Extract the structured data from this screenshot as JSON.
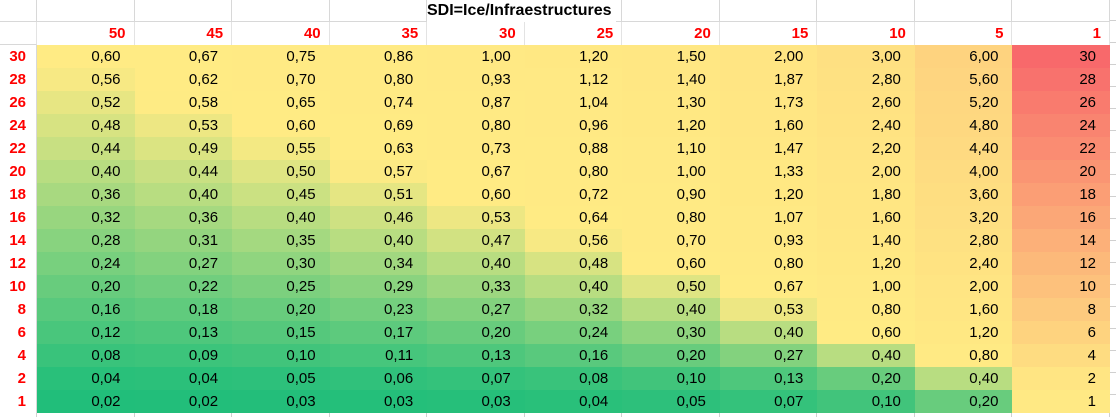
{
  "sheet": {
    "title": "SDI=Ice/Infraestructures",
    "column_headers": [
      "50",
      "45",
      "40",
      "35",
      "30",
      "25",
      "20",
      "15",
      "10",
      "5",
      "1"
    ],
    "row_headers": [
      "30",
      "28",
      "26",
      "24",
      "22",
      "20",
      "18",
      "16",
      "14",
      "12",
      "10",
      "8",
      "6",
      "4",
      "2",
      "1"
    ],
    "cells": [
      [
        "0,60",
        "0,67",
        "0,75",
        "0,86",
        "1,00",
        "1,20",
        "1,50",
        "2,00",
        "3,00",
        "6,00",
        "30"
      ],
      [
        "0,56",
        "0,62",
        "0,70",
        "0,80",
        "0,93",
        "1,12",
        "1,40",
        "1,87",
        "2,80",
        "5,60",
        "28"
      ],
      [
        "0,52",
        "0,58",
        "0,65",
        "0,74",
        "0,87",
        "1,04",
        "1,30",
        "1,73",
        "2,60",
        "5,20",
        "26"
      ],
      [
        "0,48",
        "0,53",
        "0,60",
        "0,69",
        "0,80",
        "0,96",
        "1,20",
        "1,60",
        "2,40",
        "4,80",
        "24"
      ],
      [
        "0,44",
        "0,49",
        "0,55",
        "0,63",
        "0,73",
        "0,88",
        "1,10",
        "1,47",
        "2,20",
        "4,40",
        "22"
      ],
      [
        "0,40",
        "0,44",
        "0,50",
        "0,57",
        "0,67",
        "0,80",
        "1,00",
        "1,33",
        "2,00",
        "4,00",
        "20"
      ],
      [
        "0,36",
        "0,40",
        "0,45",
        "0,51",
        "0,60",
        "0,72",
        "0,90",
        "1,20",
        "1,80",
        "3,60",
        "18"
      ],
      [
        "0,32",
        "0,36",
        "0,40",
        "0,46",
        "0,53",
        "0,64",
        "0,80",
        "1,07",
        "1,60",
        "3,20",
        "16"
      ],
      [
        "0,28",
        "0,31",
        "0,35",
        "0,40",
        "0,47",
        "0,56",
        "0,70",
        "0,93",
        "1,40",
        "2,80",
        "14"
      ],
      [
        "0,24",
        "0,27",
        "0,30",
        "0,34",
        "0,40",
        "0,48",
        "0,60",
        "0,80",
        "1,20",
        "2,40",
        "12"
      ],
      [
        "0,20",
        "0,22",
        "0,25",
        "0,29",
        "0,33",
        "0,40",
        "0,50",
        "0,67",
        "1,00",
        "2,00",
        "10"
      ],
      [
        "0,16",
        "0,18",
        "0,20",
        "0,23",
        "0,27",
        "0,32",
        "0,40",
        "0,53",
        "0,80",
        "1,60",
        "8"
      ],
      [
        "0,12",
        "0,13",
        "0,15",
        "0,17",
        "0,20",
        "0,24",
        "0,30",
        "0,40",
        "0,60",
        "1,20",
        "6"
      ],
      [
        "0,08",
        "0,09",
        "0,10",
        "0,11",
        "0,13",
        "0,16",
        "0,20",
        "0,27",
        "0,40",
        "0,80",
        "4"
      ],
      [
        "0,04",
        "0,04",
        "0,05",
        "0,06",
        "0,07",
        "0,08",
        "0,10",
        "0,13",
        "0,20",
        "0,40",
        "2"
      ],
      [
        "0,02",
        "0,02",
        "0,03",
        "0,03",
        "0,03",
        "0,04",
        "0,05",
        "0,07",
        "0,10",
        "0,20",
        "1"
      ]
    ]
  },
  "colors": {
    "header_text": "#FF0000",
    "row_label_text": "#FF0000",
    "value_text": "#000000",
    "gridline": "#D8D8D8",
    "background": "#FFFFFF",
    "scale_min_color": "#21BE7A",
    "scale_mid_color": "#FFEB84",
    "scale_max_color": "#F8696B",
    "scale_min_value": 0.02,
    "scale_mid_value": 0.58,
    "scale_max_value": 30
  },
  "chart_data": {
    "type": "heatmap",
    "title": "SDI=Ice/Infraestructures",
    "x_labels": [
      50,
      45,
      40,
      35,
      30,
      25,
      20,
      15,
      10,
      5,
      1
    ],
    "y_labels": [
      30,
      28,
      26,
      24,
      22,
      20,
      18,
      16,
      14,
      12,
      10,
      8,
      6,
      4,
      2,
      1
    ],
    "value_rule": "cell = row_label / column_label, displayed with comma decimal separator; last column shown as integer",
    "values": [
      [
        0.6,
        0.67,
        0.75,
        0.86,
        1.0,
        1.2,
        1.5,
        2.0,
        3.0,
        6.0,
        30
      ],
      [
        0.56,
        0.62,
        0.7,
        0.8,
        0.93,
        1.12,
        1.4,
        1.87,
        2.8,
        5.6,
        28
      ],
      [
        0.52,
        0.58,
        0.65,
        0.74,
        0.87,
        1.04,
        1.3,
        1.73,
        2.6,
        5.2,
        26
      ],
      [
        0.48,
        0.53,
        0.6,
        0.69,
        0.8,
        0.96,
        1.2,
        1.6,
        2.4,
        4.8,
        24
      ],
      [
        0.44,
        0.49,
        0.55,
        0.63,
        0.73,
        0.88,
        1.1,
        1.47,
        2.2,
        4.4,
        22
      ],
      [
        0.4,
        0.44,
        0.5,
        0.57,
        0.67,
        0.8,
        1.0,
        1.33,
        2.0,
        4.0,
        20
      ],
      [
        0.36,
        0.4,
        0.45,
        0.51,
        0.6,
        0.72,
        0.9,
        1.2,
        1.8,
        3.6,
        18
      ],
      [
        0.32,
        0.36,
        0.4,
        0.46,
        0.53,
        0.64,
        0.8,
        1.07,
        1.6,
        3.2,
        16
      ],
      [
        0.28,
        0.31,
        0.35,
        0.4,
        0.47,
        0.56,
        0.7,
        0.93,
        1.4,
        2.8,
        14
      ],
      [
        0.24,
        0.27,
        0.3,
        0.34,
        0.4,
        0.48,
        0.6,
        0.8,
        1.2,
        2.4,
        12
      ],
      [
        0.2,
        0.22,
        0.25,
        0.29,
        0.33,
        0.4,
        0.5,
        0.67,
        1.0,
        2.0,
        10
      ],
      [
        0.16,
        0.18,
        0.2,
        0.23,
        0.27,
        0.32,
        0.4,
        0.53,
        0.8,
        1.6,
        8
      ],
      [
        0.12,
        0.13,
        0.15,
        0.17,
        0.2,
        0.24,
        0.3,
        0.4,
        0.6,
        1.2,
        6
      ],
      [
        0.08,
        0.09,
        0.1,
        0.11,
        0.13,
        0.16,
        0.2,
        0.27,
        0.4,
        0.8,
        4
      ],
      [
        0.04,
        0.04,
        0.05,
        0.06,
        0.07,
        0.08,
        0.1,
        0.13,
        0.2,
        0.4,
        2
      ],
      [
        0.02,
        0.02,
        0.03,
        0.03,
        0.03,
        0.04,
        0.05,
        0.07,
        0.1,
        0.2,
        1
      ]
    ],
    "color_scale": {
      "min": {
        "value": 0.02,
        "color": "#21BE7A"
      },
      "mid": {
        "value": 0.58,
        "color": "#FFEB84"
      },
      "max": {
        "value": 30,
        "color": "#F8696B"
      }
    },
    "legend": "none",
    "grid": "off inside colored area"
  }
}
